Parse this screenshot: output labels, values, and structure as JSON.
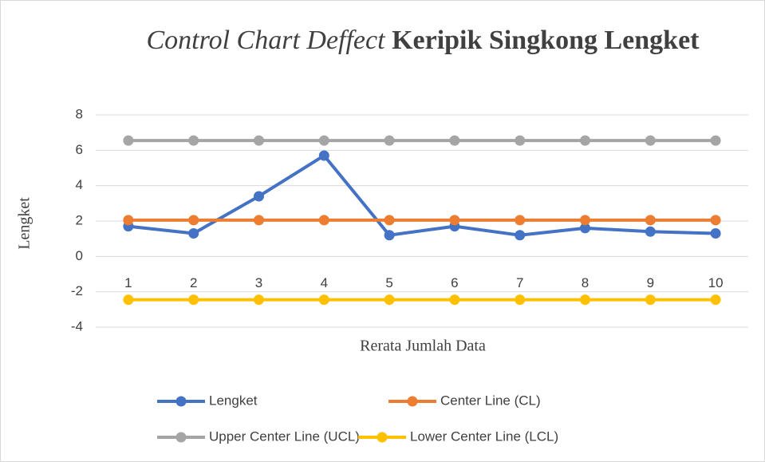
{
  "chart_data": {
    "type": "line",
    "title": {
      "italic": "Control Chart Deffect",
      "bold": "Keripik Singkong Lengket"
    },
    "x_label": "Rerata Jumlah Data",
    "y_label": "Lengket",
    "categories": [
      "1",
      "2",
      "3",
      "4",
      "5",
      "6",
      "7",
      "8",
      "9",
      "10"
    ],
    "series": [
      {
        "name": "Lengket",
        "color": "#4472c4",
        "values": [
          1.7,
          1.3,
          3.4,
          5.7,
          1.2,
          1.7,
          1.2,
          1.6,
          1.4,
          1.3
        ]
      },
      {
        "name": "Center Line (CL)",
        "color": "#ed7d31",
        "values": [
          2.05,
          2.05,
          2.05,
          2.05,
          2.05,
          2.05,
          2.05,
          2.05,
          2.05,
          2.05
        ]
      },
      {
        "name": "Upper Center Line (UCL)",
        "color": "#a5a5a5",
        "values": [
          6.55,
          6.55,
          6.55,
          6.55,
          6.55,
          6.55,
          6.55,
          6.55,
          6.55,
          6.55
        ]
      },
      {
        "name": "Lower Center Line (LCL)",
        "color": "#ffc000",
        "values": [
          -2.45,
          -2.45,
          -2.45,
          -2.45,
          -2.45,
          -2.45,
          -2.45,
          -2.45,
          -2.45,
          -2.45
        ]
      }
    ],
    "ylim": [
      -4,
      8
    ],
    "yticks": [
      -4,
      -2,
      0,
      2,
      4,
      6,
      8
    ],
    "grid": true,
    "legend": "bottom"
  }
}
